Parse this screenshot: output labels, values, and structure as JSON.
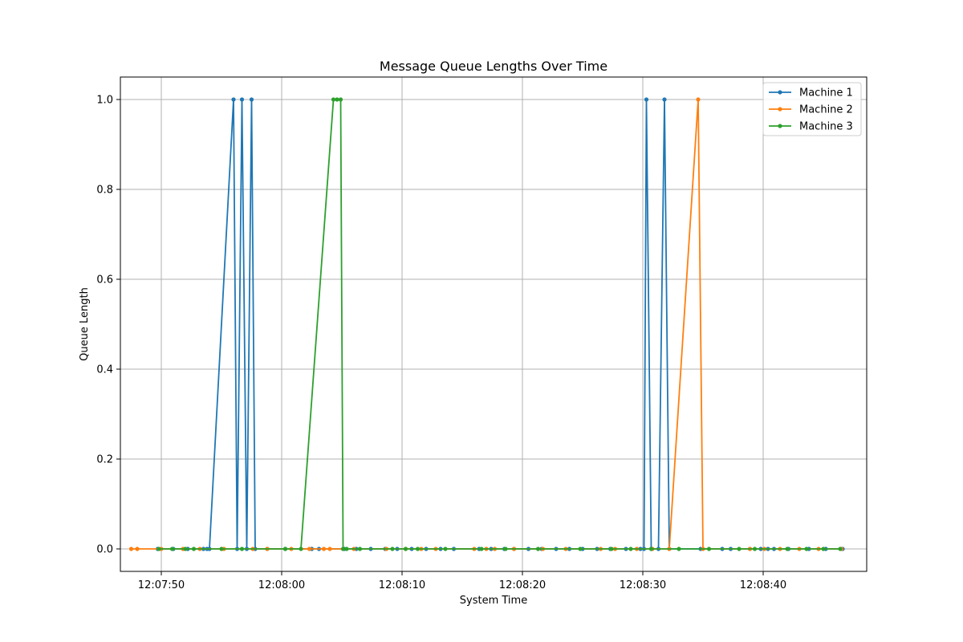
{
  "chart_data": {
    "type": "line",
    "title": "Message Queue Lengths Over Time",
    "xlabel": "System Time",
    "ylabel": "Queue Length",
    "x_unit": "clock time (HH:MM:SS)",
    "xlim": [
      "12:07:46.60",
      "12:08:48.60"
    ],
    "ylim": [
      -0.05,
      1.05
    ],
    "x_ticks": [
      "12:07:50",
      "12:08:00",
      "12:08:10",
      "12:08:20",
      "12:08:30",
      "12:08:40"
    ],
    "y_ticks": [
      "0.0",
      "0.2",
      "0.4",
      "0.6",
      "0.8",
      "1.0"
    ],
    "grid": true,
    "legend_position": "top-right",
    "series": [
      {
        "name": "Machine 1",
        "color": "#1f77b4",
        "points": [
          [
            "12:07:49.70",
            0
          ],
          [
            "12:07:51.00",
            0
          ],
          [
            "12:07:52.20",
            0
          ],
          [
            "12:07:53.50",
            0
          ],
          [
            "12:07:53.80",
            0
          ],
          [
            "12:07:54.00",
            0
          ],
          [
            "12:07:56.00",
            1
          ],
          [
            "12:07:56.30",
            0
          ],
          [
            "12:07:56.70",
            1
          ],
          [
            "12:07:57.10",
            0
          ],
          [
            "12:07:57.50",
            1
          ],
          [
            "12:07:57.80",
            0
          ],
          [
            "12:07:58.80",
            0
          ],
          [
            "12:08:00.30",
            0
          ],
          [
            "12:08:02.50",
            0
          ],
          [
            "12:08:03.10",
            0
          ],
          [
            "12:08:05.20",
            0
          ],
          [
            "12:08:06.20",
            0
          ],
          [
            "12:08:07.40",
            0
          ],
          [
            "12:08:08.60",
            0
          ],
          [
            "12:08:09.60",
            0
          ],
          [
            "12:08:10.80",
            0
          ],
          [
            "12:08:12.00",
            0
          ],
          [
            "12:08:13.20",
            0
          ],
          [
            "12:08:14.30",
            0
          ],
          [
            "12:08:16.40",
            0
          ],
          [
            "12:08:17.40",
            0
          ],
          [
            "12:08:18.50",
            0
          ],
          [
            "12:08:19.30",
            0
          ],
          [
            "12:08:20.50",
            0
          ],
          [
            "12:08:21.60",
            0
          ],
          [
            "12:08:22.80",
            0
          ],
          [
            "12:08:23.90",
            0
          ],
          [
            "12:08:25.00",
            0
          ],
          [
            "12:08:26.20",
            0
          ],
          [
            "12:08:27.30",
            0
          ],
          [
            "12:08:28.60",
            0
          ],
          [
            "12:08:29.80",
            0
          ],
          [
            "12:08:30.10",
            0
          ],
          [
            "12:08:30.30",
            1
          ],
          [
            "12:08:30.70",
            0
          ],
          [
            "12:08:31.30",
            0
          ],
          [
            "12:08:31.80",
            1
          ],
          [
            "12:08:32.20",
            0
          ],
          [
            "12:08:34.80",
            0
          ],
          [
            "12:08:36.60",
            0
          ],
          [
            "12:08:37.30",
            0
          ],
          [
            "12:08:38.90",
            0
          ],
          [
            "12:08:39.80",
            0
          ],
          [
            "12:08:40.40",
            0
          ],
          [
            "12:08:40.90",
            0
          ],
          [
            "12:08:42.10",
            0
          ],
          [
            "12:08:43.80",
            0
          ],
          [
            "12:08:45.20",
            0
          ],
          [
            "12:08:46.60",
            0
          ]
        ]
      },
      {
        "name": "Machine 2",
        "color": "#ff7f0e",
        "points": [
          [
            "12:07:47.50",
            0
          ],
          [
            "12:07:48.00",
            0
          ],
          [
            "12:07:50.00",
            0
          ],
          [
            "12:07:51.80",
            0
          ],
          [
            "12:07:53.20",
            0
          ],
          [
            "12:07:55.20",
            0
          ],
          [
            "12:07:57.60",
            0
          ],
          [
            "12:07:58.80",
            0
          ],
          [
            "12:08:00.80",
            0
          ],
          [
            "12:08:02.30",
            0
          ],
          [
            "12:08:03.50",
            0
          ],
          [
            "12:08:04.00",
            0
          ],
          [
            "12:08:06.00",
            0
          ],
          [
            "12:08:08.70",
            0
          ],
          [
            "12:08:10.30",
            0
          ],
          [
            "12:08:11.60",
            0
          ],
          [
            "12:08:12.80",
            0
          ],
          [
            "12:08:16.00",
            0
          ],
          [
            "12:08:17.00",
            0
          ],
          [
            "12:08:17.70",
            0
          ],
          [
            "12:08:19.30",
            0
          ],
          [
            "12:08:21.70",
            0
          ],
          [
            "12:08:23.60",
            0
          ],
          [
            "12:08:26.50",
            0
          ],
          [
            "12:08:27.70",
            0
          ],
          [
            "12:08:29.50",
            0
          ],
          [
            "12:08:30.80",
            0
          ],
          [
            "12:08:32.20",
            0
          ],
          [
            "12:08:34.60",
            1
          ],
          [
            "12:08:35.00",
            0
          ],
          [
            "12:08:38.90",
            0
          ],
          [
            "12:08:40.10",
            0
          ],
          [
            "12:08:41.40",
            0
          ],
          [
            "12:08:43.00",
            0
          ],
          [
            "12:08:44.60",
            0
          ],
          [
            "12:08:46.50",
            0
          ]
        ]
      },
      {
        "name": "Machine 3",
        "color": "#2ca02c",
        "points": [
          [
            "12:07:49.80",
            0
          ],
          [
            "12:07:50.90",
            0
          ],
          [
            "12:07:52.00",
            0
          ],
          [
            "12:07:52.70",
            0
          ],
          [
            "12:07:55.00",
            0
          ],
          [
            "12:07:56.70",
            0
          ],
          [
            "12:08:00.30",
            0
          ],
          [
            "12:08:01.60",
            0
          ],
          [
            "12:08:04.30",
            1
          ],
          [
            "12:08:04.60",
            1
          ],
          [
            "12:08:04.90",
            1
          ],
          [
            "12:08:05.10",
            0
          ],
          [
            "12:08:05.40",
            0
          ],
          [
            "12:08:06.50",
            0
          ],
          [
            "12:08:09.20",
            0
          ],
          [
            "12:08:10.30",
            0
          ],
          [
            "12:08:11.30",
            0
          ],
          [
            "12:08:13.60",
            0
          ],
          [
            "12:08:16.60",
            0
          ],
          [
            "12:08:18.60",
            0
          ],
          [
            "12:08:21.30",
            0
          ],
          [
            "12:08:24.80",
            0
          ],
          [
            "12:08:27.40",
            0
          ],
          [
            "12:08:29.00",
            0
          ],
          [
            "12:08:30.70",
            0
          ],
          [
            "12:08:33.00",
            0
          ],
          [
            "12:08:35.50",
            0
          ],
          [
            "12:08:38.00",
            0
          ],
          [
            "12:08:39.30",
            0
          ],
          [
            "12:08:42.00",
            0
          ],
          [
            "12:08:43.60",
            0
          ],
          [
            "12:08:45.00",
            0
          ],
          [
            "12:08:46.40",
            0
          ]
        ]
      }
    ]
  }
}
